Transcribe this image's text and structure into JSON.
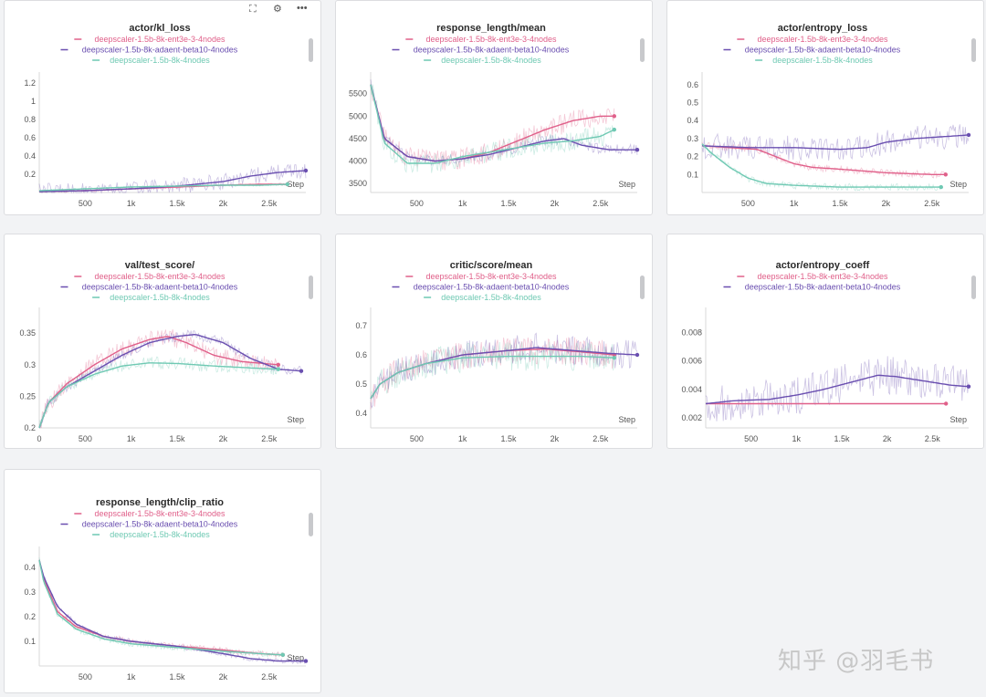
{
  "toolbar": {
    "grid_icon": "grid-dots-icon",
    "fullscreen_icon": "fullscreen-icon",
    "gear_icon": "gear-icon",
    "more_icon": "more-icon"
  },
  "colors": {
    "ent3e": "#e0608a",
    "adaent": "#6a4fb0",
    "base": "#6fc9b3"
  },
  "watermark": "知乎 @羽毛书",
  "chart_data": [
    {
      "id": "kl",
      "type": "line",
      "title": "actor/kl_loss",
      "legend": [
        "deepscaler-1.5b-8k-ent3e-3-4nodes",
        "deepscaler-1.5b-8k-adaent-beta10-4nodes",
        "deepscaler-1.5b-8k-4nodes"
      ],
      "xlim": [
        0,
        2900
      ],
      "ylim": [
        0,
        1.28
      ],
      "xticks": [
        500,
        1000,
        1500,
        2000,
        2500
      ],
      "xtick_labels": [
        "500",
        "1k",
        "1.5k",
        "2k",
        "2.5k"
      ],
      "yticks": [
        0.2,
        0.4,
        0.6,
        0.8,
        1,
        1.2
      ],
      "ytick_labels": [
        "0.2",
        "0.4",
        "0.6",
        "0.8",
        "1",
        "1.2"
      ],
      "xlabel": "Step",
      "series": [
        {
          "noise": 0.012,
          "x": [
            0,
            500,
            1000,
            1500,
            2000,
            2400,
            2700
          ],
          "y": [
            0.01,
            0.02,
            0.04,
            0.06,
            0.08,
            0.09,
            0.09
          ]
        },
        {
          "noise": 0.09,
          "x": [
            0,
            500,
            1000,
            1500,
            2000,
            2300,
            2600,
            2900
          ],
          "y": [
            0.01,
            0.02,
            0.04,
            0.07,
            0.12,
            0.18,
            0.22,
            0.24
          ]
        },
        {
          "noise": 0.012,
          "x": [
            0,
            500,
            1000,
            1500,
            2000,
            2400,
            2700
          ],
          "y": [
            0.02,
            0.04,
            0.06,
            0.07,
            0.08,
            0.08,
            0.09
          ]
        }
      ]
    },
    {
      "id": "resp",
      "type": "line",
      "title": "response_length/mean",
      "legend": [
        "deepscaler-1.5b-8k-ent3e-3-4nodes",
        "deepscaler-1.5b-8k-adaent-beta10-4nodes",
        "deepscaler-1.5b-8k-4nodes"
      ],
      "xlim": [
        0,
        2900
      ],
      "ylim": [
        3300,
        5900
      ],
      "xticks": [
        500,
        1000,
        1500,
        2000,
        2500
      ],
      "xtick_labels": [
        "500",
        "1k",
        "1.5k",
        "2k",
        "2.5k"
      ],
      "yticks": [
        3500,
        4000,
        4500,
        5000,
        5500
      ],
      "ytick_labels": [
        "3500",
        "4000",
        "4500",
        "5000",
        "5500"
      ],
      "xlabel": "Step",
      "series": [
        {
          "noise": 230,
          "x": [
            0,
            150,
            400,
            700,
            1000,
            1300,
            1600,
            1900,
            2200,
            2500,
            2650
          ],
          "y": [
            5700,
            4500,
            4100,
            4000,
            4050,
            4200,
            4450,
            4700,
            4900,
            5000,
            5000
          ]
        },
        {
          "noise": 120,
          "x": [
            0,
            150,
            400,
            700,
            1000,
            1300,
            1600,
            1900,
            2100,
            2300,
            2600,
            2900
          ],
          "y": [
            5700,
            4500,
            4100,
            4000,
            4050,
            4150,
            4300,
            4450,
            4500,
            4350,
            4250,
            4250
          ]
        },
        {
          "noise": 230,
          "x": [
            0,
            150,
            400,
            700,
            1000,
            1300,
            1600,
            1900,
            2200,
            2500,
            2650
          ],
          "y": [
            5700,
            4400,
            3950,
            3950,
            4100,
            4200,
            4300,
            4400,
            4450,
            4550,
            4700
          ]
        }
      ]
    },
    {
      "id": "entloss",
      "type": "line",
      "title": "actor/entropy_loss",
      "legend": [
        "deepscaler-1.5b-8k-ent3e-3-4nodes",
        "deepscaler-1.5b-8k-adaent-beta10-4nodes",
        "deepscaler-1.5b-8k-4nodes"
      ],
      "xlim": [
        0,
        2900
      ],
      "ylim": [
        0,
        0.65
      ],
      "xticks": [
        500,
        1000,
        1500,
        2000,
        2500
      ],
      "xtick_labels": [
        "500",
        "1k",
        "1.5k",
        "2k",
        "2.5k"
      ],
      "yticks": [
        0.1,
        0.2,
        0.3,
        0.4,
        0.5,
        0.6
      ],
      "ytick_labels": [
        "0.1",
        "0.2",
        "0.3",
        "0.4",
        "0.5",
        "0.6"
      ],
      "xlabel": "Step",
      "series": [
        {
          "noise": 0.02,
          "x": [
            0,
            300,
            600,
            800,
            1000,
            1200,
            1500,
            2000,
            2500,
            2650
          ],
          "y": [
            0.26,
            0.25,
            0.24,
            0.2,
            0.16,
            0.14,
            0.13,
            0.11,
            0.1,
            0.1
          ]
        },
        {
          "noise": 0.07,
          "x": [
            0,
            500,
            1000,
            1500,
            1800,
            2000,
            2300,
            2600,
            2900
          ],
          "y": [
            0.26,
            0.25,
            0.25,
            0.24,
            0.25,
            0.28,
            0.3,
            0.31,
            0.32
          ]
        },
        {
          "noise": 0.02,
          "x": [
            0,
            100,
            300,
            500,
            700,
            1000,
            1500,
            2000,
            2600
          ],
          "y": [
            0.27,
            0.22,
            0.14,
            0.08,
            0.05,
            0.04,
            0.03,
            0.03,
            0.03
          ]
        }
      ]
    },
    {
      "id": "val",
      "type": "line",
      "title": "val/test_score/",
      "legend": [
        "deepscaler-1.5b-8k-ent3e-3-4nodes",
        "deepscaler-1.5b-8k-adaent-beta10-4nodes",
        "deepscaler-1.5b-8k-4nodes"
      ],
      "xlim": [
        0,
        2900
      ],
      "ylim": [
        0.2,
        0.385
      ],
      "xticks": [
        0,
        500,
        1000,
        1500,
        2000,
        2500
      ],
      "xtick_labels": [
        "0",
        "500",
        "1k",
        "1.5k",
        "2k",
        "2.5k"
      ],
      "yticks": [
        0.2,
        0.25,
        0.3,
        0.35
      ],
      "ytick_labels": [
        "0.2",
        "0.25",
        "0.3",
        "0.35"
      ],
      "xlabel": "Step",
      "series": [
        {
          "noise": 0.014,
          "x": [
            0,
            100,
            300,
            600,
            900,
            1200,
            1400,
            1600,
            1900,
            2200,
            2600
          ],
          "y": [
            0.2,
            0.24,
            0.27,
            0.3,
            0.325,
            0.34,
            0.345,
            0.335,
            0.315,
            0.305,
            0.3
          ]
        },
        {
          "noise": 0.008,
          "x": [
            0,
            100,
            300,
            600,
            900,
            1200,
            1500,
            1700,
            2000,
            2300,
            2600,
            2850
          ],
          "y": [
            0.2,
            0.24,
            0.265,
            0.29,
            0.315,
            0.335,
            0.345,
            0.348,
            0.335,
            0.31,
            0.293,
            0.29
          ]
        },
        {
          "noise": 0.01,
          "x": [
            0,
            100,
            300,
            600,
            900,
            1200,
            1500,
            1900,
            2300,
            2600
          ],
          "y": [
            0.2,
            0.24,
            0.265,
            0.285,
            0.298,
            0.303,
            0.302,
            0.298,
            0.295,
            0.293
          ]
        }
      ]
    },
    {
      "id": "critic",
      "type": "line",
      "title": "critic/score/mean",
      "legend": [
        "deepscaler-1.5b-8k-ent3e-3-4nodes",
        "deepscaler-1.5b-8k-adaent-beta10-4nodes",
        "deepscaler-1.5b-8k-4nodes"
      ],
      "xlim": [
        0,
        2900
      ],
      "ylim": [
        0.35,
        0.75
      ],
      "xticks": [
        500,
        1000,
        1500,
        2000,
        2500
      ],
      "xtick_labels": [
        "500",
        "1k",
        "1.5k",
        "2k",
        "2.5k"
      ],
      "yticks": [
        0.4,
        0.5,
        0.6,
        0.7
      ],
      "ytick_labels": [
        "0.4",
        "0.5",
        "0.6",
        "0.7"
      ],
      "xlabel": "Step",
      "series": [
        {
          "noise": 0.05,
          "x": [
            0,
            100,
            300,
            600,
            1000,
            1500,
            1900,
            2300,
            2650
          ],
          "y": [
            0.45,
            0.5,
            0.54,
            0.57,
            0.6,
            0.615,
            0.62,
            0.61,
            0.6
          ]
        },
        {
          "noise": 0.05,
          "x": [
            0,
            100,
            300,
            600,
            1000,
            1500,
            1800,
            2200,
            2600,
            2900
          ],
          "y": [
            0.45,
            0.5,
            0.54,
            0.57,
            0.6,
            0.615,
            0.625,
            0.615,
            0.605,
            0.6
          ]
        },
        {
          "noise": 0.05,
          "x": [
            0,
            100,
            300,
            600,
            1000,
            1500,
            1900,
            2300,
            2650
          ],
          "y": [
            0.45,
            0.5,
            0.54,
            0.57,
            0.59,
            0.595,
            0.595,
            0.595,
            0.59
          ]
        }
      ]
    },
    {
      "id": "entcoeff",
      "type": "line",
      "title": "actor/entropy_coeff",
      "legend": [
        "deepscaler-1.5b-8k-ent3e-3-4nodes",
        "deepscaler-1.5b-8k-adaent-beta10-4nodes"
      ],
      "xlim": [
        0,
        2900
      ],
      "ylim": [
        0.0013,
        0.0095
      ],
      "xticks": [
        500,
        1000,
        1500,
        2000,
        2500
      ],
      "xtick_labels": [
        "500",
        "1k",
        "1.5k",
        "2k",
        "2.5k"
      ],
      "yticks": [
        0.002,
        0.004,
        0.006,
        0.008
      ],
      "ytick_labels": [
        "0.002",
        "0.004",
        "0.006",
        "0.008"
      ],
      "xlabel": "Step",
      "series": [
        {
          "noise": 0,
          "x": [
            0,
            2650
          ],
          "y": [
            0.003,
            0.003
          ]
        },
        {
          "noise": 0.0014,
          "x": [
            0,
            300,
            700,
            1000,
            1300,
            1600,
            1900,
            2100,
            2400,
            2700,
            2900
          ],
          "y": [
            0.003,
            0.0032,
            0.0033,
            0.0036,
            0.004,
            0.0045,
            0.005,
            0.0049,
            0.0046,
            0.0043,
            0.0042
          ]
        }
      ]
    },
    {
      "id": "clip",
      "type": "line",
      "title": "response_length/clip_ratio",
      "legend": [
        "deepscaler-1.5b-8k-ent3e-3-4nodes",
        "deepscaler-1.5b-8k-adaent-beta10-4nodes",
        "deepscaler-1.5b-8k-4nodes"
      ],
      "xlim": [
        0,
        2900
      ],
      "ylim": [
        0,
        0.47
      ],
      "xticks": [
        500,
        1000,
        1500,
        2000,
        2500
      ],
      "xtick_labels": [
        "500",
        "1k",
        "1.5k",
        "2k",
        "2.5k"
      ],
      "yticks": [
        0.1,
        0.2,
        0.3,
        0.4
      ],
      "ytick_labels": [
        "0.1",
        "0.2",
        "0.3",
        "0.4"
      ],
      "xlabel": "Step",
      "series": [
        {
          "noise": 0.012,
          "x": [
            0,
            50,
            200,
            400,
            700,
            1000,
            1500,
            2000,
            2400,
            2650
          ],
          "y": [
            0.43,
            0.35,
            0.22,
            0.16,
            0.12,
            0.1,
            0.08,
            0.065,
            0.05,
            0.045
          ]
        },
        {
          "noise": 0.01,
          "x": [
            0,
            50,
            200,
            400,
            700,
            1000,
            1500,
            2000,
            2300,
            2600,
            2900
          ],
          "y": [
            0.43,
            0.36,
            0.24,
            0.17,
            0.12,
            0.1,
            0.08,
            0.05,
            0.03,
            0.02,
            0.02
          ]
        },
        {
          "noise": 0.012,
          "x": [
            0,
            50,
            200,
            400,
            700,
            1000,
            1500,
            2000,
            2400,
            2650
          ],
          "y": [
            0.43,
            0.34,
            0.21,
            0.15,
            0.11,
            0.09,
            0.075,
            0.06,
            0.05,
            0.045
          ]
        }
      ]
    }
  ]
}
